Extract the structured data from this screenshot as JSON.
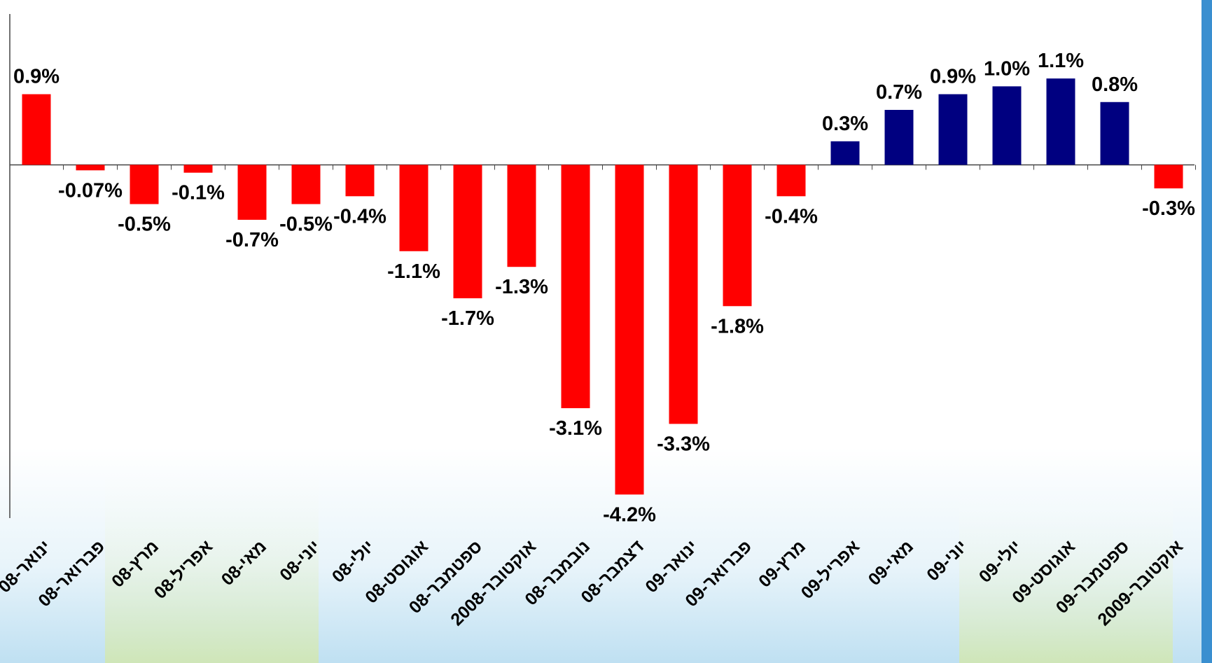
{
  "chart_data": {
    "type": "bar",
    "categories": [
      "ינואר-08",
      "פברואר-08",
      "מרץ-08",
      "אפריל-08",
      "מאי-08",
      "יוני-08",
      "יולי-08",
      "אוגוסט-08",
      "ספטמבר-08",
      "אוקטובר-2008",
      "נובמבר-08",
      "דצמבר-08",
      "ינואר-09",
      "פברואר-09",
      "מרץ-09",
      "אפריל-09",
      "מאי-09",
      "יוני-09",
      "יולי-09",
      "אוגוסט-09",
      "ספטמבר-09",
      "אוקטובר-2009"
    ],
    "values": [
      0.9,
      -0.07,
      -0.5,
      -0.1,
      -0.7,
      -0.5,
      -0.4,
      -1.1,
      -1.7,
      -1.3,
      -3.1,
      -4.2,
      -3.3,
      -1.8,
      -0.4,
      0.3,
      0.7,
      0.9,
      1.0,
      1.1,
      0.8,
      -0.3
    ],
    "value_labels": [
      "0.9%",
      "-0.07%",
      "-0.5%",
      "-0.1%",
      "-0.7%",
      "-0.5%",
      "-0.4%",
      "-1.1%",
      "-1.7%",
      "-1.3%",
      "-3.1%",
      "-4.2%",
      "-3.3%",
      "-1.8%",
      "-0.4%",
      "0.3%",
      "0.7%",
      "0.9%",
      "1.0%",
      "1.1%",
      "0.8%",
      "-0.3%"
    ],
    "colors": [
      "#ff0000",
      "#ff0000",
      "#ff0000",
      "#ff0000",
      "#ff0000",
      "#ff0000",
      "#ff0000",
      "#ff0000",
      "#ff0000",
      "#ff0000",
      "#ff0000",
      "#ff0000",
      "#ff0000",
      "#ff0000",
      "#ff0000",
      "#000080",
      "#000080",
      "#000080",
      "#000080",
      "#000080",
      "#000080",
      "#ff0000"
    ],
    "ylim": [
      -4.5,
      2.1
    ]
  }
}
